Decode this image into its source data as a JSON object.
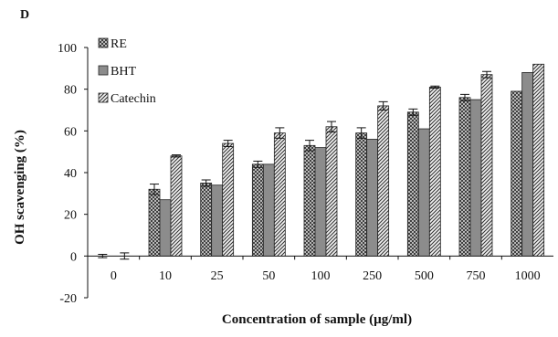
{
  "chart_data": {
    "type": "bar",
    "panel_label": "D",
    "xlabel": "Concentration of sample (µg/ml)",
    "ylabel": "OH scavenging (%)",
    "ylim": [
      -20,
      100
    ],
    "yticks": [
      -20,
      0,
      20,
      40,
      60,
      80,
      100
    ],
    "categories": [
      "0",
      "10",
      "25",
      "50",
      "100",
      "250",
      "500",
      "750",
      "1000"
    ],
    "legend_position": "top-left",
    "series": [
      {
        "name": "RE",
        "pattern": "cross-hatch",
        "color": "#555555",
        "values": [
          0,
          32,
          35,
          44,
          53,
          59,
          69,
          76,
          79
        ],
        "errors": [
          0.8,
          2.5,
          1.5,
          1.5,
          2.5,
          2.5,
          1.5,
          1.5,
          0
        ]
      },
      {
        "name": "BHT",
        "pattern": "solid",
        "color": "#8c8c8c",
        "values": [
          0,
          27,
          34,
          44,
          52,
          56,
          61,
          75,
          88
        ],
        "errors": [
          0,
          0,
          0,
          0,
          0,
          0,
          0,
          0,
          0
        ]
      },
      {
        "name": "Catechin",
        "pattern": "diagonal",
        "color": "#555555",
        "values": [
          0,
          48,
          54,
          59,
          62,
          72,
          81,
          87,
          92
        ],
        "errors": [
          1.5,
          0.5,
          1.5,
          2.5,
          2.5,
          2.0,
          0.5,
          1.5,
          0
        ]
      }
    ]
  }
}
